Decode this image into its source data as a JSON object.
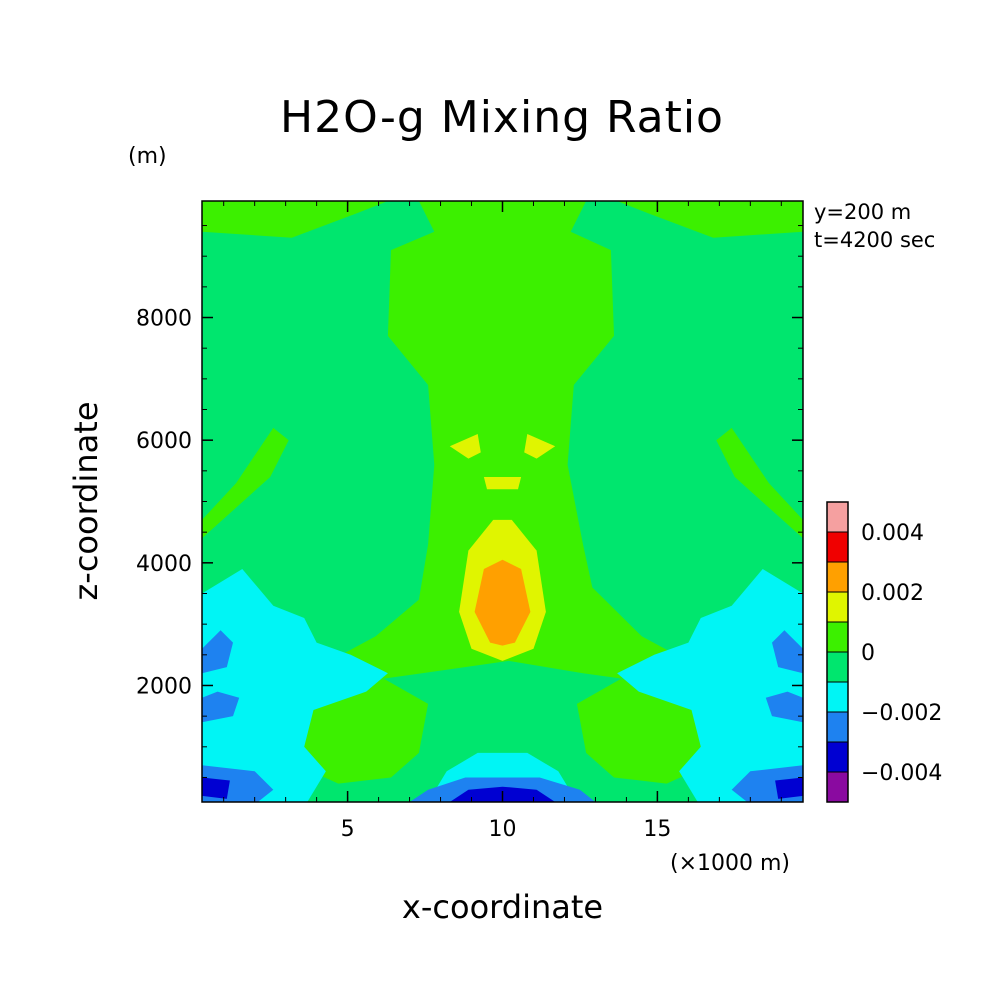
{
  "chart_data": {
    "type": "heatmap",
    "title": "H2O-g Mixing Ratio",
    "xlabel": "x-coordinate",
    "x_unit_label": "(×1000 m)",
    "ylabel": "z-coordinate",
    "y_unit_label": "(m)",
    "annotations": [
      "y=200 m",
      "t=4200 sec"
    ],
    "xlim": [
      0.3,
      19.7
    ],
    "ylim": [
      100,
      9900
    ],
    "x_ticks": [
      5,
      10,
      15
    ],
    "x_tick_labels": [
      "5",
      "10",
      "15"
    ],
    "y_ticks": [
      2000,
      4000,
      6000,
      8000
    ],
    "y_tick_labels": [
      "2000",
      "4000",
      "6000",
      "8000"
    ],
    "colorbar": {
      "levels": [
        {
          "min": -0.005,
          "max": -0.004,
          "color": "#8a0aa0"
        },
        {
          "min": -0.004,
          "max": -0.003,
          "color": "#0000d2"
        },
        {
          "min": -0.003,
          "max": -0.002,
          "color": "#1e82f0"
        },
        {
          "min": -0.002,
          "max": -0.001,
          "color": "#00f5f5"
        },
        {
          "min": -0.001,
          "max": 0.0,
          "color": "#00e66e"
        },
        {
          "min": 0.0,
          "max": 0.001,
          "color": "#3cf000"
        },
        {
          "min": 0.001,
          "max": 0.002,
          "color": "#e0f500"
        },
        {
          "min": 0.002,
          "max": 0.003,
          "color": "#ffa000"
        },
        {
          "min": 0.003,
          "max": 0.004,
          "color": "#f00000"
        },
        {
          "min": 0.004,
          "max": 0.005,
          "color": "#f5a0a0"
        }
      ],
      "tick_values": [
        0.004,
        0.002,
        0,
        -0.002,
        -0.004
      ],
      "tick_labels": [
        "0.004",
        "0.002",
        "0",
        "−0.002",
        "−0.004"
      ]
    },
    "field_regions": [
      {
        "level": "-0.001..0",
        "description": "background",
        "polygon": [
          [
            0.3,
            100
          ],
          [
            19.7,
            100
          ],
          [
            19.7,
            9900
          ],
          [
            0.3,
            9900
          ]
        ]
      },
      {
        "level": "0..0.001",
        "description": "central column",
        "polygon": [
          [
            7.3,
            9900
          ],
          [
            12.7,
            9900
          ],
          [
            12.2,
            9400
          ],
          [
            13.5,
            9100
          ],
          [
            13.6,
            7700
          ],
          [
            12.3,
            6900
          ],
          [
            12.1,
            5600
          ],
          [
            12.6,
            4300
          ],
          [
            12.9,
            3600
          ],
          [
            14.5,
            2800
          ],
          [
            15.6,
            2500
          ],
          [
            14.0,
            2100
          ],
          [
            12.6,
            2200
          ],
          [
            10.2,
            2400
          ],
          [
            7.4,
            2200
          ],
          [
            6.0,
            2100
          ],
          [
            4.8,
            2500
          ],
          [
            5.9,
            2800
          ],
          [
            7.3,
            3400
          ],
          [
            7.6,
            4300
          ],
          [
            7.8,
            5600
          ],
          [
            7.6,
            6900
          ],
          [
            6.3,
            7700
          ],
          [
            6.4,
            9100
          ],
          [
            7.8,
            9400
          ]
        ]
      },
      {
        "level": "0..0.001",
        "description": "upper-left lobe",
        "polygon": [
          [
            0.3,
            9400
          ],
          [
            3.2,
            9300
          ],
          [
            5.3,
            9700
          ],
          [
            6.3,
            9900
          ],
          [
            0.3,
            9900
          ]
        ]
      },
      {
        "level": "0..0.001",
        "description": "upper-right lobe",
        "polygon": [
          [
            19.7,
            9400
          ],
          [
            16.8,
            9300
          ],
          [
            14.7,
            9700
          ],
          [
            13.7,
            9900
          ],
          [
            19.7,
            9900
          ]
        ]
      },
      {
        "level": "0..0.001",
        "description": "left arm",
        "polygon": [
          [
            0.3,
            4400
          ],
          [
            2.5,
            5400
          ],
          [
            3.1,
            6000
          ],
          [
            2.6,
            6200
          ],
          [
            1.4,
            5300
          ],
          [
            0.3,
            4700
          ]
        ]
      },
      {
        "level": "0..0.001",
        "description": "right arm",
        "polygon": [
          [
            19.7,
            4400
          ],
          [
            17.5,
            5400
          ],
          [
            16.9,
            6000
          ],
          [
            17.4,
            6200
          ],
          [
            18.6,
            5300
          ],
          [
            19.7,
            4700
          ]
        ]
      },
      {
        "level": "0..0.001",
        "description": "lower left band",
        "polygon": [
          [
            2.8,
            2100
          ],
          [
            6.2,
            2100
          ],
          [
            7.6,
            1700
          ],
          [
            7.3,
            900
          ],
          [
            6.4,
            500
          ],
          [
            4.7,
            400
          ],
          [
            3.4,
            700
          ],
          [
            2.6,
            1200
          ]
        ]
      },
      {
        "level": "0..0.001",
        "description": "lower right band",
        "polygon": [
          [
            17.2,
            2100
          ],
          [
            13.8,
            2100
          ],
          [
            12.4,
            1700
          ],
          [
            12.7,
            900
          ],
          [
            13.6,
            500
          ],
          [
            15.3,
            400
          ],
          [
            16.6,
            700
          ],
          [
            17.4,
            1200
          ]
        ]
      },
      {
        "level": "-0.002..-0.001",
        "description": "lower-left moist deficit",
        "polygon": [
          [
            0.3,
            100
          ],
          [
            3.7,
            100
          ],
          [
            4.3,
            600
          ],
          [
            3.6,
            1000
          ],
          [
            3.9,
            1600
          ],
          [
            5.6,
            1900
          ],
          [
            6.3,
            2200
          ],
          [
            5.1,
            2500
          ],
          [
            4.0,
            2700
          ],
          [
            3.6,
            3100
          ],
          [
            2.6,
            3300
          ],
          [
            1.6,
            3900
          ],
          [
            0.3,
            3500
          ]
        ]
      },
      {
        "level": "-0.002..-0.001",
        "description": "lower-right moist deficit",
        "polygon": [
          [
            19.7,
            100
          ],
          [
            16.3,
            100
          ],
          [
            15.7,
            600
          ],
          [
            16.4,
            1000
          ],
          [
            16.1,
            1600
          ],
          [
            14.4,
            1900
          ],
          [
            13.7,
            2200
          ],
          [
            14.9,
            2500
          ],
          [
            16.0,
            2700
          ],
          [
            16.4,
            3100
          ],
          [
            17.4,
            3300
          ],
          [
            18.4,
            3900
          ],
          [
            19.7,
            3500
          ]
        ]
      },
      {
        "level": "-0.002..-0.001",
        "description": "lower centre",
        "polygon": [
          [
            7.6,
            100
          ],
          [
            12.4,
            100
          ],
          [
            11.8,
            600
          ],
          [
            10.8,
            900
          ],
          [
            9.2,
            900
          ],
          [
            8.2,
            600
          ]
        ]
      },
      {
        "level": "-0.003..-0.002",
        "description": "left edge cell 1",
        "polygon": [
          [
            0.3,
            2200
          ],
          [
            1.1,
            2300
          ],
          [
            1.3,
            2700
          ],
          [
            0.9,
            2900
          ],
          [
            0.3,
            2600
          ]
        ]
      },
      {
        "level": "-0.003..-0.002",
        "description": "left edge cell 2",
        "polygon": [
          [
            0.3,
            1400
          ],
          [
            1.3,
            1500
          ],
          [
            1.5,
            1800
          ],
          [
            0.8,
            1900
          ],
          [
            0.3,
            1800
          ]
        ]
      },
      {
        "level": "-0.003..-0.002",
        "description": "left edge cell 3",
        "polygon": [
          [
            0.3,
            100
          ],
          [
            2.1,
            100
          ],
          [
            2.6,
            300
          ],
          [
            2.0,
            600
          ],
          [
            0.3,
            700
          ]
        ]
      },
      {
        "level": "-0.003..-0.002",
        "description": "right edge cell 1",
        "polygon": [
          [
            19.7,
            2200
          ],
          [
            18.9,
            2300
          ],
          [
            18.7,
            2700
          ],
          [
            19.1,
            2900
          ],
          [
            19.7,
            2600
          ]
        ]
      },
      {
        "level": "-0.003..-0.002",
        "description": "right edge cell 2",
        "polygon": [
          [
            19.7,
            1400
          ],
          [
            18.7,
            1500
          ],
          [
            18.5,
            1800
          ],
          [
            19.2,
            1900
          ],
          [
            19.7,
            1800
          ]
        ]
      },
      {
        "level": "-0.003..-0.002",
        "description": "right edge cell 3",
        "polygon": [
          [
            19.7,
            100
          ],
          [
            17.9,
            100
          ],
          [
            17.4,
            300
          ],
          [
            18.0,
            600
          ],
          [
            19.7,
            700
          ]
        ]
      },
      {
        "level": "-0.003..-0.002",
        "description": "bottom centre",
        "polygon": [
          [
            7.0,
            100
          ],
          [
            13.0,
            100
          ],
          [
            12.5,
            300
          ],
          [
            11.2,
            500
          ],
          [
            10.0,
            500
          ],
          [
            8.8,
            500
          ],
          [
            7.6,
            300
          ]
        ]
      },
      {
        "level": "-0.004..-0.003",
        "description": "left corner",
        "polygon": [
          [
            0.3,
            200
          ],
          [
            1.1,
            150
          ],
          [
            1.2,
            450
          ],
          [
            0.3,
            500
          ]
        ]
      },
      {
        "level": "-0.004..-0.003",
        "description": "right corner",
        "polygon": [
          [
            19.7,
            200
          ],
          [
            18.9,
            150
          ],
          [
            18.8,
            450
          ],
          [
            19.7,
            500
          ]
        ]
      },
      {
        "level": "-0.004..-0.003",
        "description": "bottom centre core",
        "polygon": [
          [
            8.3,
            100
          ],
          [
            11.7,
            100
          ],
          [
            11.1,
            300
          ],
          [
            10.0,
            350
          ],
          [
            8.9,
            300
          ]
        ]
      },
      {
        "level": "0.001..0.002",
        "description": "central plume",
        "polygon": [
          [
            8.6,
            3200
          ],
          [
            8.9,
            4200
          ],
          [
            9.7,
            4700
          ],
          [
            10.3,
            4700
          ],
          [
            11.1,
            4200
          ],
          [
            11.4,
            3200
          ],
          [
            11.0,
            2600
          ],
          [
            10.0,
            2400
          ],
          [
            9.0,
            2600
          ]
        ]
      },
      {
        "level": "0.001..0.002",
        "description": "left eye",
        "polygon": [
          [
            8.3,
            5900
          ],
          [
            9.2,
            6100
          ],
          [
            9.3,
            5800
          ],
          [
            8.9,
            5700
          ]
        ]
      },
      {
        "level": "0.001..0.002",
        "description": "right eye",
        "polygon": [
          [
            11.7,
            5900
          ],
          [
            10.8,
            6100
          ],
          [
            10.7,
            5800
          ],
          [
            11.1,
            5700
          ]
        ]
      },
      {
        "level": "0.001..0.002",
        "description": "upper bridge",
        "polygon": [
          [
            9.4,
            5400
          ],
          [
            10.6,
            5400
          ],
          [
            10.5,
            5200
          ],
          [
            9.5,
            5200
          ]
        ]
      },
      {
        "level": "0.002..0.003",
        "description": "central core",
        "polygon": [
          [
            9.1,
            3200
          ],
          [
            9.4,
            3900
          ],
          [
            10.0,
            4050
          ],
          [
            10.6,
            3900
          ],
          [
            10.9,
            3200
          ],
          [
            10.4,
            2700
          ],
          [
            10.0,
            2650
          ],
          [
            9.6,
            2700
          ]
        ]
      }
    ]
  }
}
